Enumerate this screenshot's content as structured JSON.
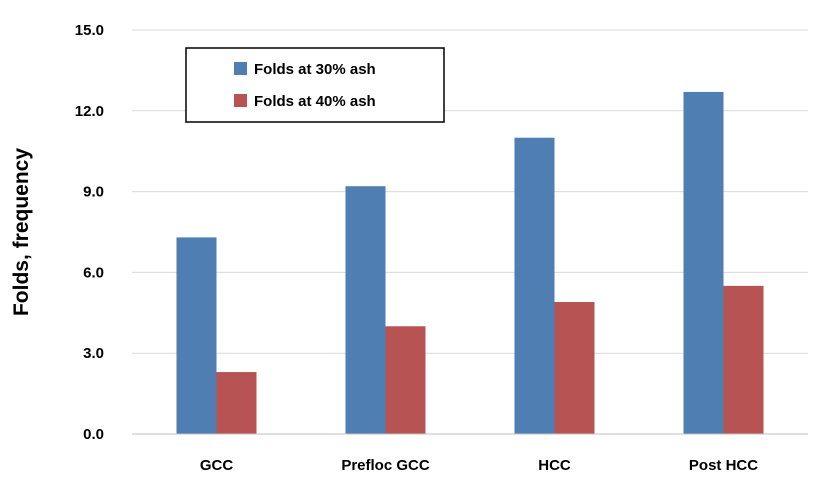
{
  "chart_data": {
    "type": "bar",
    "title": "",
    "xlabel": "",
    "ylabel": "Folds, frequency",
    "ylim": [
      0,
      15
    ],
    "yticks": [
      "0.0",
      "3.0",
      "6.0",
      "9.0",
      "12.0",
      "15.0"
    ],
    "grid": true,
    "legend_position": "top-left",
    "categories": [
      "GCC",
      "Prefloc GCC",
      "HCC",
      "Post HCC"
    ],
    "series": [
      {
        "name": "Folds at 30% ash",
        "color": "#4F7EB3",
        "values": [
          7.3,
          9.2,
          11.0,
          12.7
        ]
      },
      {
        "name": "Folds at 40% ash",
        "color": "#B85353",
        "values": [
          2.3,
          4.0,
          4.9,
          5.5
        ]
      }
    ]
  }
}
